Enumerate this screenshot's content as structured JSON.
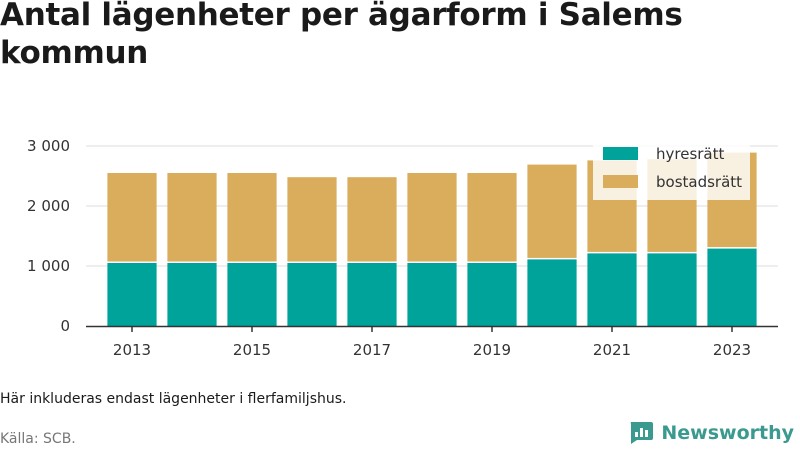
{
  "title": "Antal lägenheter per ägarform i Salems kommun",
  "note": "Här inkluderas endast lägenheter i flerfamiljshus.",
  "source": "Källa: SCB.",
  "brand": "Newsworthy",
  "colors": {
    "hyresratt": "#00a39a",
    "bostadsratt": "#d9ad5c",
    "brand": "#3a9a8f",
    "gridline": "#dddddd",
    "axis": "#333333"
  },
  "icons": {
    "brand_logo": "chart-bubble-icon"
  },
  "chart_data": {
    "type": "bar",
    "stacked": true,
    "categories": [
      "2013",
      "2014",
      "2015",
      "2016",
      "2017",
      "2018",
      "2019",
      "2020",
      "2021",
      "2022",
      "2023"
    ],
    "x_tick_labels": [
      "2013",
      "2015",
      "2017",
      "2019",
      "2021",
      "2023"
    ],
    "series": [
      {
        "name": "hyresrätt",
        "values": [
          1050,
          1050,
          1050,
          1050,
          1050,
          1050,
          1050,
          1110,
          1210,
          1210,
          1290
        ]
      },
      {
        "name": "bostadsrätt",
        "values": [
          1500,
          1500,
          1500,
          1430,
          1430,
          1500,
          1500,
          1580,
          1550,
          1570,
          1600
        ]
      }
    ],
    "ylim": [
      0,
      3000
    ],
    "y_ticks": [
      0,
      1000,
      2000,
      3000
    ],
    "y_tick_labels": [
      "0",
      "1 000",
      "2 000",
      "3 000"
    ],
    "grid": true,
    "legend_position": "top-right",
    "xlabel": "",
    "ylabel": ""
  }
}
